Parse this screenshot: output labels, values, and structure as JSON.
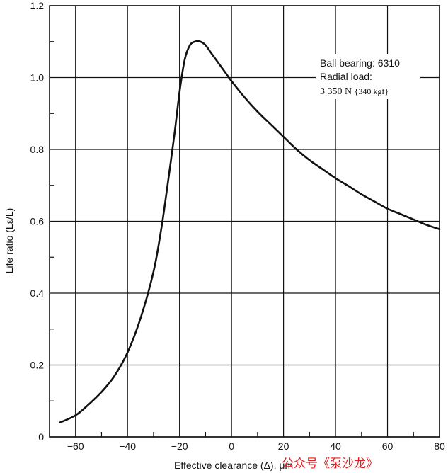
{
  "chart_data": {
    "type": "line",
    "xlabel": "Effective clearance (Δ), μm",
    "ylabel": "Life ratio (Lε/L)",
    "xlim": [
      -70,
      80
    ],
    "ylim": [
      0,
      1.2
    ],
    "x_ticks": [
      -60,
      -40,
      -20,
      0,
      20,
      40,
      60,
      80
    ],
    "x_tick_labels": [
      "−60",
      "−40",
      "−20",
      "0",
      "20",
      "40",
      "60",
      "80"
    ],
    "y_ticks": [
      0,
      0.2,
      0.4,
      0.6,
      0.8,
      1.0,
      1.2
    ],
    "y_tick_labels": [
      "0",
      "0.2",
      "0.4",
      "0.6",
      "0.8",
      "1.0",
      "1.2"
    ],
    "grid": true,
    "annotation": {
      "line1": "Ball bearing: 6310",
      "line2": "Radial load:",
      "line3a": "3 350 N",
      "line3b": "{340 kgf}"
    },
    "series": [
      {
        "name": "Life ratio",
        "x": [
          -66,
          -60,
          -55,
          -50,
          -45,
          -40,
          -35,
          -30,
          -27,
          -25,
          -22,
          -20,
          -18,
          -16,
          -14,
          -12,
          -10,
          -8,
          -6,
          -4,
          -2,
          0,
          5,
          10,
          15,
          20,
          25,
          30,
          35,
          40,
          45,
          50,
          55,
          60,
          65,
          70,
          75,
          80
        ],
        "y": [
          0.04,
          0.06,
          0.09,
          0.125,
          0.17,
          0.235,
          0.33,
          0.46,
          0.58,
          0.68,
          0.84,
          0.96,
          1.05,
          1.09,
          1.1,
          1.1,
          1.09,
          1.07,
          1.05,
          1.03,
          1.01,
          0.99,
          0.945,
          0.905,
          0.87,
          0.835,
          0.8,
          0.77,
          0.745,
          0.72,
          0.698,
          0.675,
          0.655,
          0.635,
          0.62,
          0.605,
          0.59,
          0.578
        ]
      }
    ]
  },
  "watermark": {
    "text": "公众号《泵沙龙》"
  }
}
